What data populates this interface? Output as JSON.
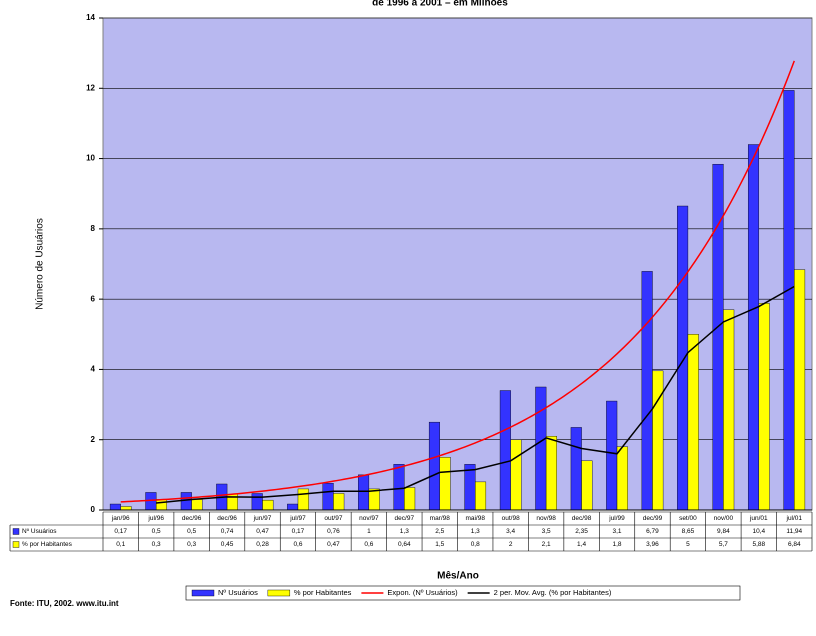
{
  "chart_data": {
    "type": "bar",
    "title": "de 1996 a 2001 – em Milhões",
    "y_label": "Número de Usuários",
    "x_label": "Mês/Ano",
    "source": "Fonte: ITU, 2002. www.itu.int",
    "categories": [
      "jan/96",
      "jul/96",
      "dec/96",
      "dec/96",
      "jun/97",
      "jul/97",
      "out/97",
      "nov/97",
      "dec/97",
      "mar/98",
      "mai/98",
      "out/98",
      "nov/98",
      "dec/98",
      "jul/99",
      "dec/99",
      "set/00",
      "nov/00",
      "jun/01",
      "jul/01"
    ],
    "series": [
      {
        "name": "Nº Usuários",
        "color": "#3333ff",
        "values": [
          0.17,
          0.5,
          0.5,
          0.74,
          0.47,
          0.17,
          0.76,
          1,
          1.3,
          2.5,
          1.3,
          3.4,
          3.5,
          2.35,
          3.1,
          6.79,
          8.65,
          9.84,
          10.4,
          11.94
        ],
        "value_labels": [
          "0,17",
          "0,5",
          "0,5",
          "0,74",
          "0,47",
          "0,17",
          "0,76",
          "1",
          "1,3",
          "2,5",
          "1,3",
          "3,4",
          "3,5",
          "2,35",
          "3,1",
          "6,79",
          "8,65",
          "9,84",
          "10,4",
          "11,94"
        ]
      },
      {
        "name": "% por Habitantes",
        "color": "#ffff00",
        "values": [
          0.1,
          0.3,
          0.3,
          0.45,
          0.28,
          0.6,
          0.47,
          0.6,
          0.64,
          1.5,
          0.8,
          2,
          2.1,
          1.4,
          1.8,
          3.96,
          5,
          5.7,
          5.88,
          6.84
        ],
        "value_labels": [
          "0,1",
          "0,3",
          "0,3",
          "0,45",
          "0,28",
          "0,6",
          "0,47",
          "0,6",
          "0,64",
          "1,5",
          "0,8",
          "2",
          "2,1",
          "1,4",
          "1,8",
          "3,96",
          "5",
          "5,7",
          "5,88",
          "6,84"
        ]
      }
    ],
    "trendlines": [
      {
        "name": "Expon. (Nº Usuários)",
        "color": "#ff0000",
        "kind": "exponential",
        "series": 0
      },
      {
        "name": "2 per. Mov. Avg. (% por Habitantes)",
        "color": "#000000",
        "kind": "moving_average",
        "period": 2,
        "series": 1
      }
    ],
    "ylim": [
      0,
      14
    ],
    "yticks": [
      0,
      2,
      4,
      6,
      8,
      10,
      12,
      14
    ],
    "grid": true,
    "plot_background": "#b8b8f0"
  }
}
